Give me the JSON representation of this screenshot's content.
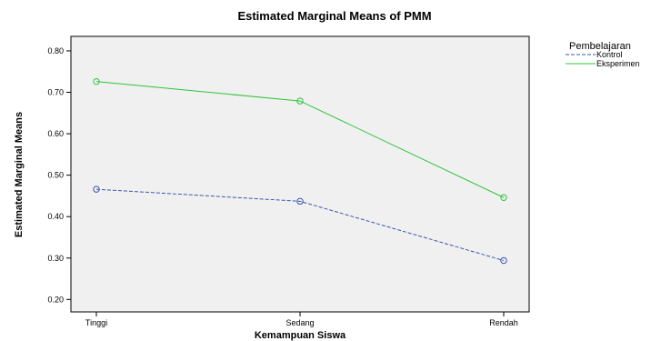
{
  "chart_data": {
    "type": "line",
    "title": "Estimated Marginal Means of PMM",
    "xlabel": "Kemampuan Siswa",
    "ylabel": "Estimated Marginal Means",
    "categories": [
      "Tinggi",
      "Sedang",
      "Rendah"
    ],
    "yticks": [
      "0.20",
      "0.30",
      "0.40",
      "0.50",
      "0.60",
      "0.70",
      "0.80"
    ],
    "ylim": [
      0.17,
      0.835
    ],
    "grid": false,
    "legend": {
      "title": "Pembelajaran",
      "placement": "right"
    },
    "series": [
      {
        "name": "Kontrol",
        "values": [
          0.466,
          0.437,
          0.294
        ],
        "color": "#3d56b0",
        "dash": true
      },
      {
        "name": "Eksperimen",
        "values": [
          0.726,
          0.679,
          0.446
        ],
        "color": "#2ec43a",
        "dash": false
      }
    ]
  },
  "colors": {
    "plot_background": "#f0f0f0",
    "axis": "#000000"
  }
}
